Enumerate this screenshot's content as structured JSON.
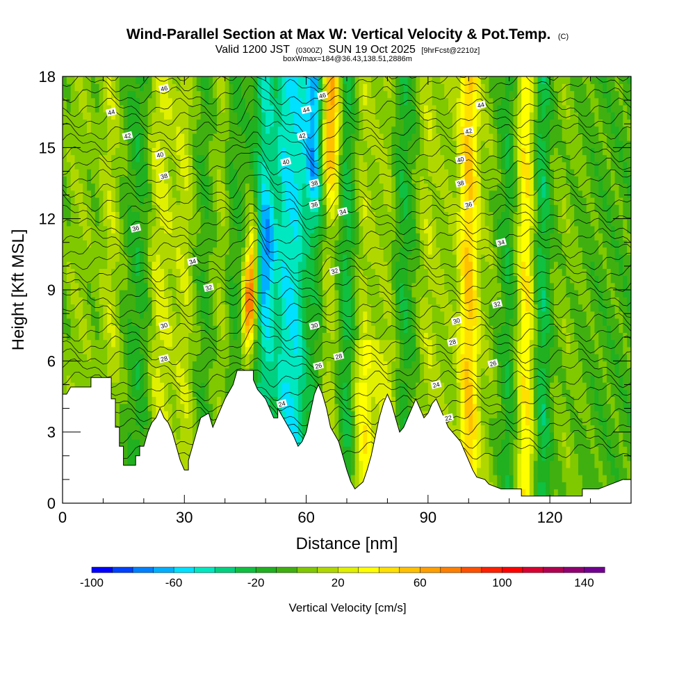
{
  "chart_data": {
    "type": "heatmap",
    "title": "Wind-Parallel Section at Max W: Vertical Velocity & Pot.Temp.",
    "title_mark": "(C)",
    "subtitle": {
      "main_a": "Valid 1200 JST",
      "utc": "(0300Z)",
      "main_b": "SUN 19 Oct 2025",
      "fcst": "[9hrFcst@2210z]"
    },
    "box_note": "boxWmax=184@36.43,138.51,2886m",
    "xlabel": "Distance [nm]",
    "ylabel": "Height [Kft MSL]",
    "xlim": [
      0,
      140
    ],
    "ylim": [
      0,
      18
    ],
    "x_ticks": [
      0,
      30,
      60,
      90,
      120
    ],
    "y_ticks": [
      0,
      3,
      6,
      9,
      12,
      15,
      18
    ],
    "colorbar": {
      "label": "Vertical Velocity [cm/s]",
      "min": -100,
      "max": 150,
      "step": 10,
      "ticks": [
        -100,
        -60,
        -20,
        20,
        60,
        100,
        140
      ],
      "colors": [
        "#0000ff",
        "#0040ff",
        "#0080ff",
        "#00b0ff",
        "#00e0ff",
        "#00e8c0",
        "#00d080",
        "#10c040",
        "#20b020",
        "#40b010",
        "#80c800",
        "#b0d800",
        "#e0f000",
        "#ffff00",
        "#ffe000",
        "#ffc000",
        "#ffa000",
        "#ff8000",
        "#ff5000",
        "#ff2000",
        "#ff0000",
        "#d80030",
        "#b00050",
        "#900070",
        "#700090"
      ]
    },
    "terrain_kft": [
      [
        0,
        4.6
      ],
      [
        1,
        4.6
      ],
      [
        2,
        4.9
      ],
      [
        7,
        4.9
      ],
      [
        7,
        5.3
      ],
      [
        12,
        5.3
      ],
      [
        12,
        4.4
      ],
      [
        13,
        4.4
      ],
      [
        13,
        3.2
      ],
      [
        14,
        3.2
      ],
      [
        14,
        2.4
      ],
      [
        15,
        2.4
      ],
      [
        15,
        1.6
      ],
      [
        18,
        1.6
      ],
      [
        18,
        2.0
      ],
      [
        19,
        2.0
      ],
      [
        19,
        2.4
      ],
      [
        20,
        2.4
      ],
      [
        21,
        3.0
      ],
      [
        22,
        3.4
      ],
      [
        23,
        3.6
      ],
      [
        24,
        4.0
      ],
      [
        25,
        3.6
      ],
      [
        26,
        3.4
      ],
      [
        27,
        3.0
      ],
      [
        28,
        2.4
      ],
      [
        29,
        1.8
      ],
      [
        30,
        1.4
      ],
      [
        31,
        1.4
      ],
      [
        31,
        1.8
      ],
      [
        32,
        2.4
      ],
      [
        33,
        3.0
      ],
      [
        34,
        3.6
      ],
      [
        36,
        3.8
      ],
      [
        37,
        3.2
      ],
      [
        38,
        3.6
      ],
      [
        40,
        4.4
      ],
      [
        42,
        5.0
      ],
      [
        43,
        5.6
      ],
      [
        47,
        5.6
      ],
      [
        47,
        5.2
      ],
      [
        48,
        4.8
      ],
      [
        50,
        4.4
      ],
      [
        51,
        4.0
      ],
      [
        52,
        3.6
      ],
      [
        53,
        3.6
      ],
      [
        53,
        4.0
      ],
      [
        55,
        3.4
      ],
      [
        57,
        2.8
      ],
      [
        58,
        2.4
      ],
      [
        59,
        2.6
      ],
      [
        60,
        3.0
      ],
      [
        61,
        3.8
      ],
      [
        62,
        4.6
      ],
      [
        63,
        5.0
      ],
      [
        64,
        4.6
      ],
      [
        65,
        4.0
      ],
      [
        66,
        3.2
      ],
      [
        68,
        2.6
      ],
      [
        69,
        2.0
      ],
      [
        70,
        1.4
      ],
      [
        71,
        0.9
      ],
      [
        72,
        0.6
      ],
      [
        74,
        0.9
      ],
      [
        75,
        1.4
      ],
      [
        76,
        2.0
      ],
      [
        77,
        2.8
      ],
      [
        78,
        3.6
      ],
      [
        79,
        4.2
      ],
      [
        80,
        4.6
      ],
      [
        81,
        4.2
      ],
      [
        82,
        3.6
      ],
      [
        83,
        3.0
      ],
      [
        84,
        3.2
      ],
      [
        85,
        3.6
      ],
      [
        86,
        4.0
      ],
      [
        87,
        4.4
      ],
      [
        88,
        4.0
      ],
      [
        89,
        3.6
      ],
      [
        90,
        3.8
      ],
      [
        91,
        4.2
      ],
      [
        92,
        4.4
      ],
      [
        93,
        4.0
      ],
      [
        94,
        3.6
      ],
      [
        95,
        3.2
      ],
      [
        96,
        3.0
      ],
      [
        97,
        2.8
      ],
      [
        98,
        2.6
      ],
      [
        99,
        2.2
      ],
      [
        100,
        1.8
      ],
      [
        101,
        1.4
      ],
      [
        102,
        1.1
      ],
      [
        104,
        1.0
      ],
      [
        105,
        0.8
      ],
      [
        108,
        0.6
      ],
      [
        110,
        0.6
      ],
      [
        113,
        0.6
      ],
      [
        113,
        0.3
      ],
      [
        120,
        0.3
      ],
      [
        122,
        0.3
      ],
      [
        128,
        0.3
      ],
      [
        128,
        0.6
      ],
      [
        132,
        0.6
      ],
      [
        135,
        0.8
      ],
      [
        138,
        1.0
      ],
      [
        140,
        1.0
      ]
    ],
    "theta_label_values": [
      22,
      24,
      26,
      28,
      30,
      32,
      34,
      36,
      38,
      40,
      42,
      44,
      46
    ]
  }
}
